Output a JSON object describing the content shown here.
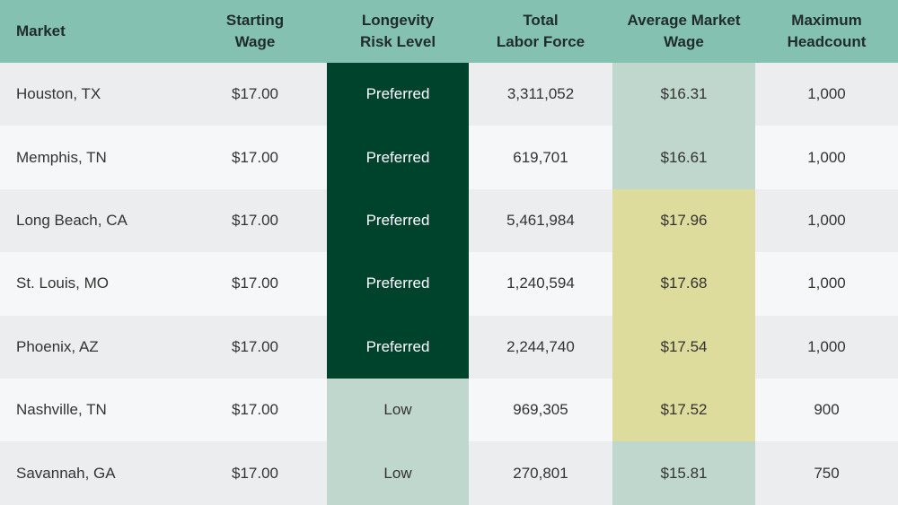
{
  "chart_data": {
    "type": "table",
    "columns": [
      {
        "key": "market",
        "lines": [
          "Market"
        ]
      },
      {
        "key": "starting_wage",
        "lines": [
          "Starting",
          "Wage"
        ]
      },
      {
        "key": "risk",
        "lines": [
          "Longevity",
          "Risk Level"
        ]
      },
      {
        "key": "labor_force",
        "lines": [
          "Total",
          "Labor Force"
        ]
      },
      {
        "key": "avg_wage",
        "lines": [
          "Average Market",
          "Wage"
        ]
      },
      {
        "key": "headcount",
        "lines": [
          "Maximum",
          "Headcount"
        ]
      }
    ],
    "rows": [
      {
        "market": "Houston, TX",
        "starting_wage": "$17.00",
        "risk": "Preferred",
        "labor_force": "3,311,052",
        "avg_wage": "$16.31",
        "headcount": "1,000"
      },
      {
        "market": "Memphis, TN",
        "starting_wage": "$17.00",
        "risk": "Preferred",
        "labor_force": "619,701",
        "avg_wage": "$16.61",
        "headcount": "1,000"
      },
      {
        "market": "Long Beach, CA",
        "starting_wage": "$17.00",
        "risk": "Preferred",
        "labor_force": "5,461,984",
        "avg_wage": "$17.96",
        "headcount": "1,000"
      },
      {
        "market": "St. Louis, MO",
        "starting_wage": "$17.00",
        "risk": "Preferred",
        "labor_force": "1,240,594",
        "avg_wage": "$17.68",
        "headcount": "1,000"
      },
      {
        "market": "Phoenix, AZ",
        "starting_wage": "$17.00",
        "risk": "Preferred",
        "labor_force": "2,244,740",
        "avg_wage": "$17.54",
        "headcount": "1,000"
      },
      {
        "market": "Nashville, TN",
        "starting_wage": "$17.00",
        "risk": "Low",
        "labor_force": "969,305",
        "avg_wage": "$17.52",
        "headcount": "900"
      },
      {
        "market": "Savannah, GA",
        "starting_wage": "$17.00",
        "risk": "Low",
        "labor_force": "270,801",
        "avg_wage": "$15.81",
        "headcount": "750"
      }
    ]
  },
  "colors": {
    "header_bg": "#85c1b0",
    "risk_preferred": "#00432d",
    "risk_low": "#c0d7ce",
    "wage_below_start": "#c0d7ce",
    "wage_above_start": "#dedc9c"
  }
}
